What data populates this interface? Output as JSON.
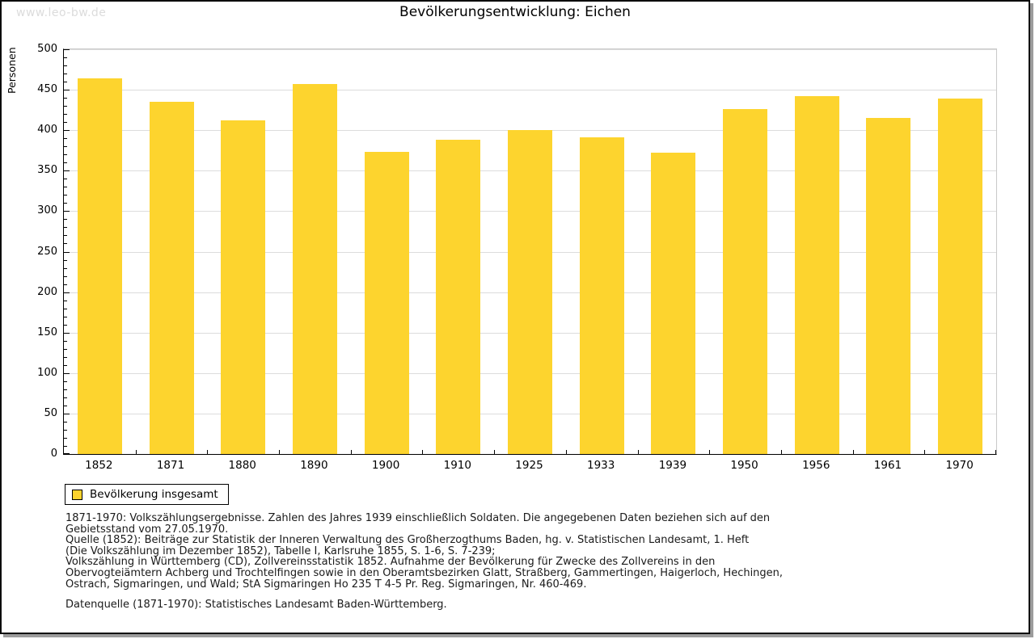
{
  "watermark": "www.leo-bw.de",
  "page_title": "Bevölkerungsentwicklung: Eichen",
  "chart_data": {
    "type": "bar",
    "title": "Bevölkerungsentwicklung: Eichen",
    "xlabel": "",
    "ylabel": "Personen",
    "categories": [
      "1852",
      "1871",
      "1880",
      "1890",
      "1900",
      "1910",
      "1925",
      "1933",
      "1939",
      "1950",
      "1956",
      "1961",
      "1970"
    ],
    "values": [
      464,
      435,
      412,
      457,
      373,
      388,
      400,
      391,
      372,
      426,
      442,
      415,
      439
    ],
    "series_name": "Bevölkerung insgesamt",
    "ylim": [
      0,
      500
    ],
    "ytick_step": 50,
    "yminor_step": 10,
    "grid": true,
    "legend_position": "bottom-left",
    "bar_color": "#FDD42E"
  },
  "legend": {
    "label": "Bevölkerung insgesamt",
    "swatch_color": "#FDD42E"
  },
  "footnotes": {
    "lines": [
      "1871-1970: Volkszählungsergebnisse. Zahlen des Jahres 1939 einschließlich Soldaten. Die angegebenen Daten beziehen sich auf den",
      "Gebietsstand vom 27.05.1970.",
      "Quelle (1852): Beiträge zur Statistik der Inneren Verwaltung des Großherzogthums Baden, hg. v. Statistischen Landesamt, 1. Heft",
      "(Die Volkszählung im Dezember 1852), Tabelle I, Karlsruhe 1855, S. 1-6, S. 7-239;",
      "Volkszählung in Württemberg (CD), Zollvereinsstatistik 1852. Aufnahme der Bevölkerung für Zwecke des Zollvereins in den",
      "Obervogteiämtern Achberg und Trochtelfingen sowie in den Oberamtsbezirken Glatt, Straßberg, Gammertingen, Haigerloch, Hechingen,",
      "Ostrach, Sigmaringen, und Wald; StA Sigmaringen Ho 235 T 4-5 Pr. Reg. Sigmaringen, Nr. 460-469."
    ],
    "datasource": "Datenquelle (1871-1970): Statistisches Landesamt Baden-Württemberg."
  },
  "colors": {
    "bar": "#FDD42E",
    "gridline": "#DCDCDC",
    "axis": "#000000",
    "frame_gray": "#C9C9C9",
    "watermark": "#DCDCDC",
    "text": "#1A1A1A",
    "shadow": "#9C9C9C"
  }
}
